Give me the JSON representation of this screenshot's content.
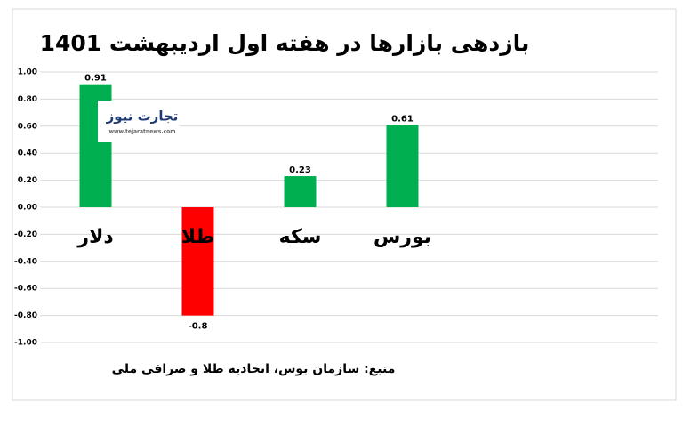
{
  "chart_data": {
    "type": "bar",
    "title": "بازدهی بازارها در هفته اول اردیبهشت 1401",
    "categories": [
      "دلار",
      "طلا",
      "سکه",
      "بورس"
    ],
    "values": [
      0.91,
      -0.8,
      0.23,
      0.61
    ],
    "colors": [
      "#00b050",
      "#ff0000",
      "#00b050",
      "#00b050"
    ],
    "ylim": [
      -1,
      1
    ],
    "yticks": [
      {
        "value": 1,
        "label": "1.00"
      },
      {
        "value": 0.8,
        "label": "0.80"
      },
      {
        "value": 0.6,
        "label": "0.60"
      },
      {
        "value": 0.4,
        "label": "0.40"
      },
      {
        "value": 0.2,
        "label": "0.20"
      },
      {
        "value": 0,
        "label": "0.00"
      },
      {
        "value": -0.2,
        "label": "-0.20"
      },
      {
        "value": -0.4,
        "label": "-0.40"
      },
      {
        "value": -0.6,
        "label": "-0.60"
      },
      {
        "value": -0.8,
        "label": "-0.80"
      },
      {
        "value": -1,
        "label": "-1.00"
      }
    ],
    "grid": true,
    "source": "منبع: سازمان بوس، اتحادیه طلا و صرافی ملی",
    "logo": {
      "name": "تجارت نیوز",
      "url": "www.tejaratnews.com"
    }
  }
}
